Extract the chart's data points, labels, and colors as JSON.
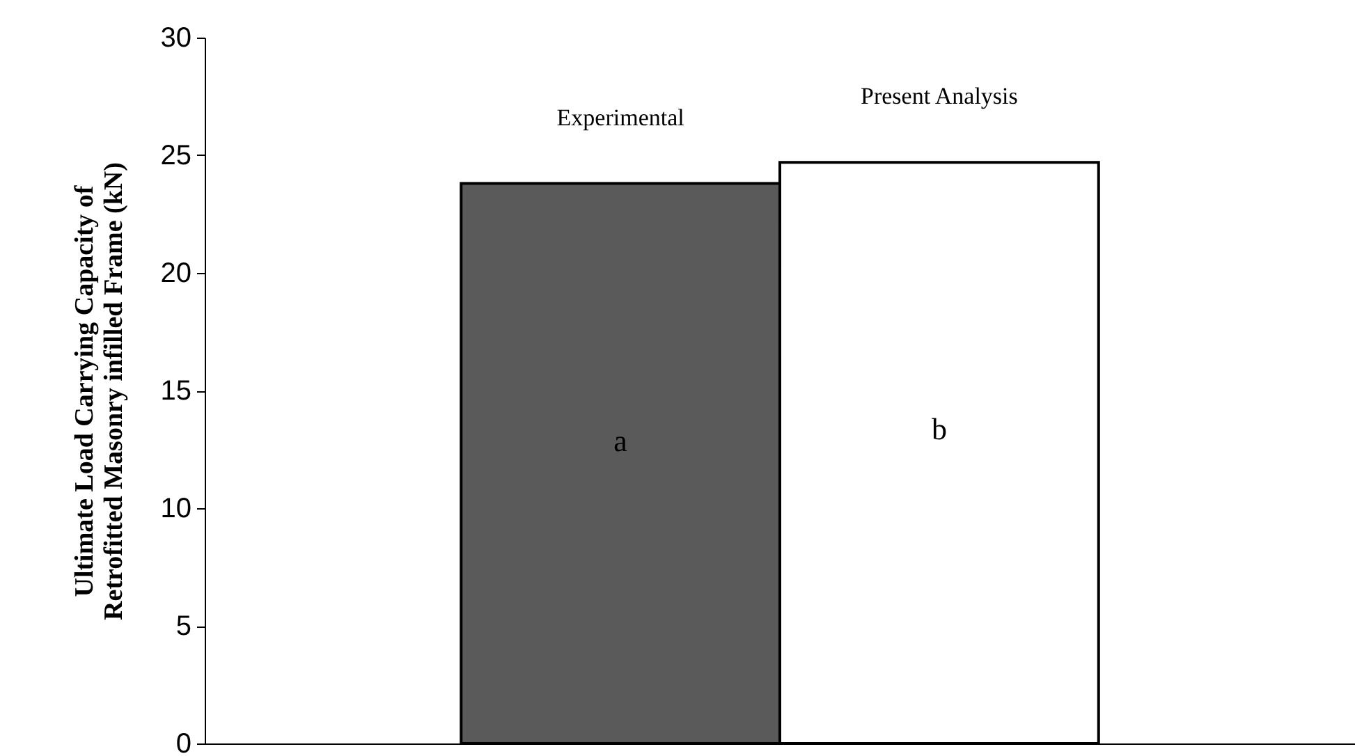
{
  "chart_data": {
    "type": "bar",
    "ylabel": "Ultimate Load Carrying Capacity of\nRetrofitted Masonry infilled Frame (kN)",
    "categories": [
      null
    ],
    "series": [
      {
        "name": "Experimental",
        "color": "#5a5a5a",
        "values": [
          23.8
        ]
      },
      {
        "name": "Present Analysis",
        "color": "#ffffff",
        "values": [
          24.7
        ]
      }
    ],
    "annotations": [
      "a",
      "b"
    ],
    "ylim": [
      0,
      30
    ],
    "yticks": [
      0,
      5,
      10,
      15,
      20,
      25,
      30
    ],
    "grid": false,
    "legend": false
  }
}
